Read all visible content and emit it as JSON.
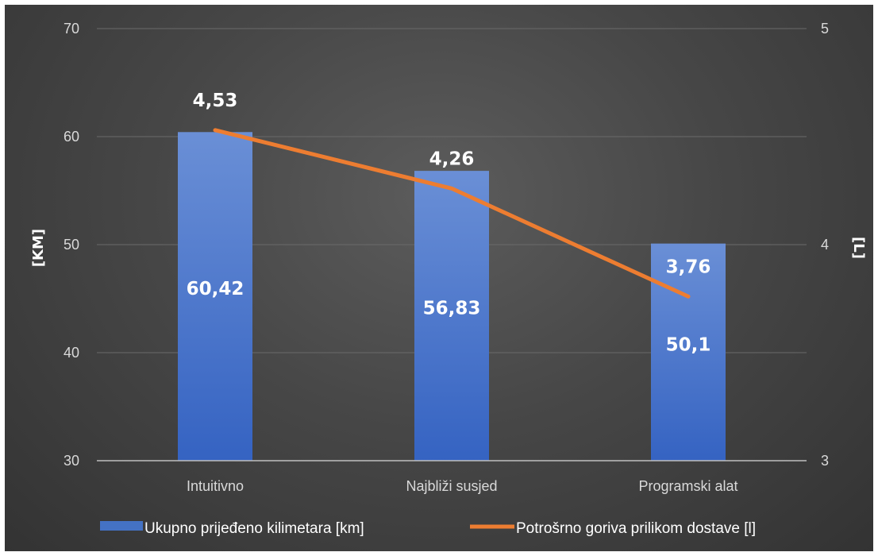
{
  "chart_data": {
    "type": "bar",
    "categories": [
      "Intuitivno",
      "Najbliži susjed",
      "Programski alat"
    ],
    "series": [
      {
        "name": "Ukupno prijeđeno kilimetara [km]",
        "type": "bar",
        "axis": "left",
        "values": [
          60.42,
          56.83,
          50.1
        ],
        "labels": [
          "60,42",
          "56,83",
          "50,1"
        ],
        "color": "#4472C4"
      },
      {
        "name": "Potrošrno goriva prilikom dostave [l]",
        "type": "line",
        "axis": "right",
        "values": [
          4.53,
          4.26,
          3.76
        ],
        "labels": [
          "4,53",
          "4,26",
          "3,76"
        ],
        "color": "#ED7D31"
      }
    ],
    "ylabel": "[KM]",
    "y2label": "[L]",
    "ylim": [
      30,
      70
    ],
    "y2lim": [
      3,
      5
    ],
    "yticks": [
      "30",
      "40",
      "50",
      "60",
      "70"
    ],
    "yticks_values": [
      30,
      40,
      50,
      60,
      70
    ],
    "y2ticks": [
      "3",
      "4",
      "5"
    ],
    "y2ticks_values": [
      3,
      4,
      5
    ],
    "grid": true,
    "legend": "bottom"
  }
}
